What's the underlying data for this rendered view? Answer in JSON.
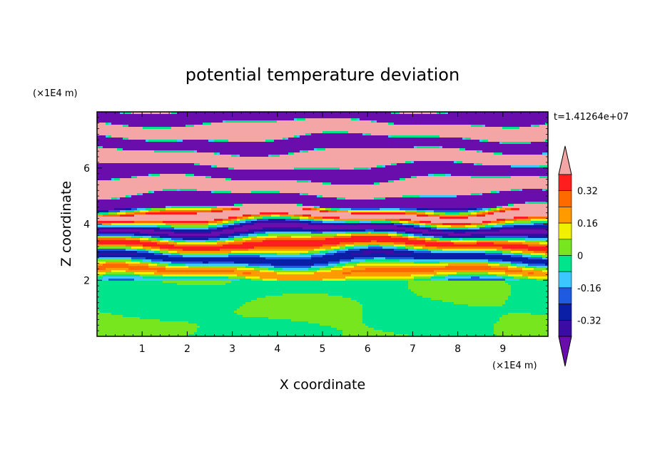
{
  "chart_data": {
    "type": "heatmap",
    "title": "potential temperature deviation",
    "time_label": "t=1.41264e+07",
    "xlabel": "X coordinate",
    "ylabel": "Z coordinate",
    "x_unit": "(×1E4 m)",
    "y_unit": "(×1E4 m)",
    "xlim": [
      0,
      10
    ],
    "ylim": [
      0,
      8
    ],
    "x_ticks": [
      "1",
      "2",
      "3",
      "4",
      "5",
      "6",
      "7",
      "8",
      "9"
    ],
    "y_ticks": [
      "2",
      "4",
      "6"
    ],
    "x_tick_values": [
      1,
      2,
      3,
      4,
      5,
      6,
      7,
      8,
      9
    ],
    "y_tick_values": [
      2,
      4,
      6
    ],
    "colorbar": {
      "levels": [
        -0.48,
        -0.4,
        -0.32,
        -0.24,
        -0.16,
        -0.08,
        0,
        0.08,
        0.16,
        0.24,
        0.32,
        0.4,
        0.48
      ],
      "colors": [
        "#6a0dad",
        "#3a0ca3",
        "#0b1fa6",
        "#1e5be0",
        "#3cc8ff",
        "#00e58c",
        "#78e61e",
        "#f0f000",
        "#ff9a00",
        "#ff6a00",
        "#ff1e1e",
        "#f4a6a6"
      ],
      "labels": [
        "0.32",
        "0.16",
        "0",
        "-0.16",
        "-0.32"
      ],
      "label_values": [
        0.32,
        0.16,
        0,
        -0.16,
        -0.32
      ]
    },
    "layers": [
      {
        "z_min": 0,
        "z_max": 2,
        "description_values": [
          -0.08,
          0
        ]
      },
      {
        "z_min": 2,
        "z_max": 8,
        "description_values": [
          -0.48,
          0.48
        ]
      }
    ]
  }
}
